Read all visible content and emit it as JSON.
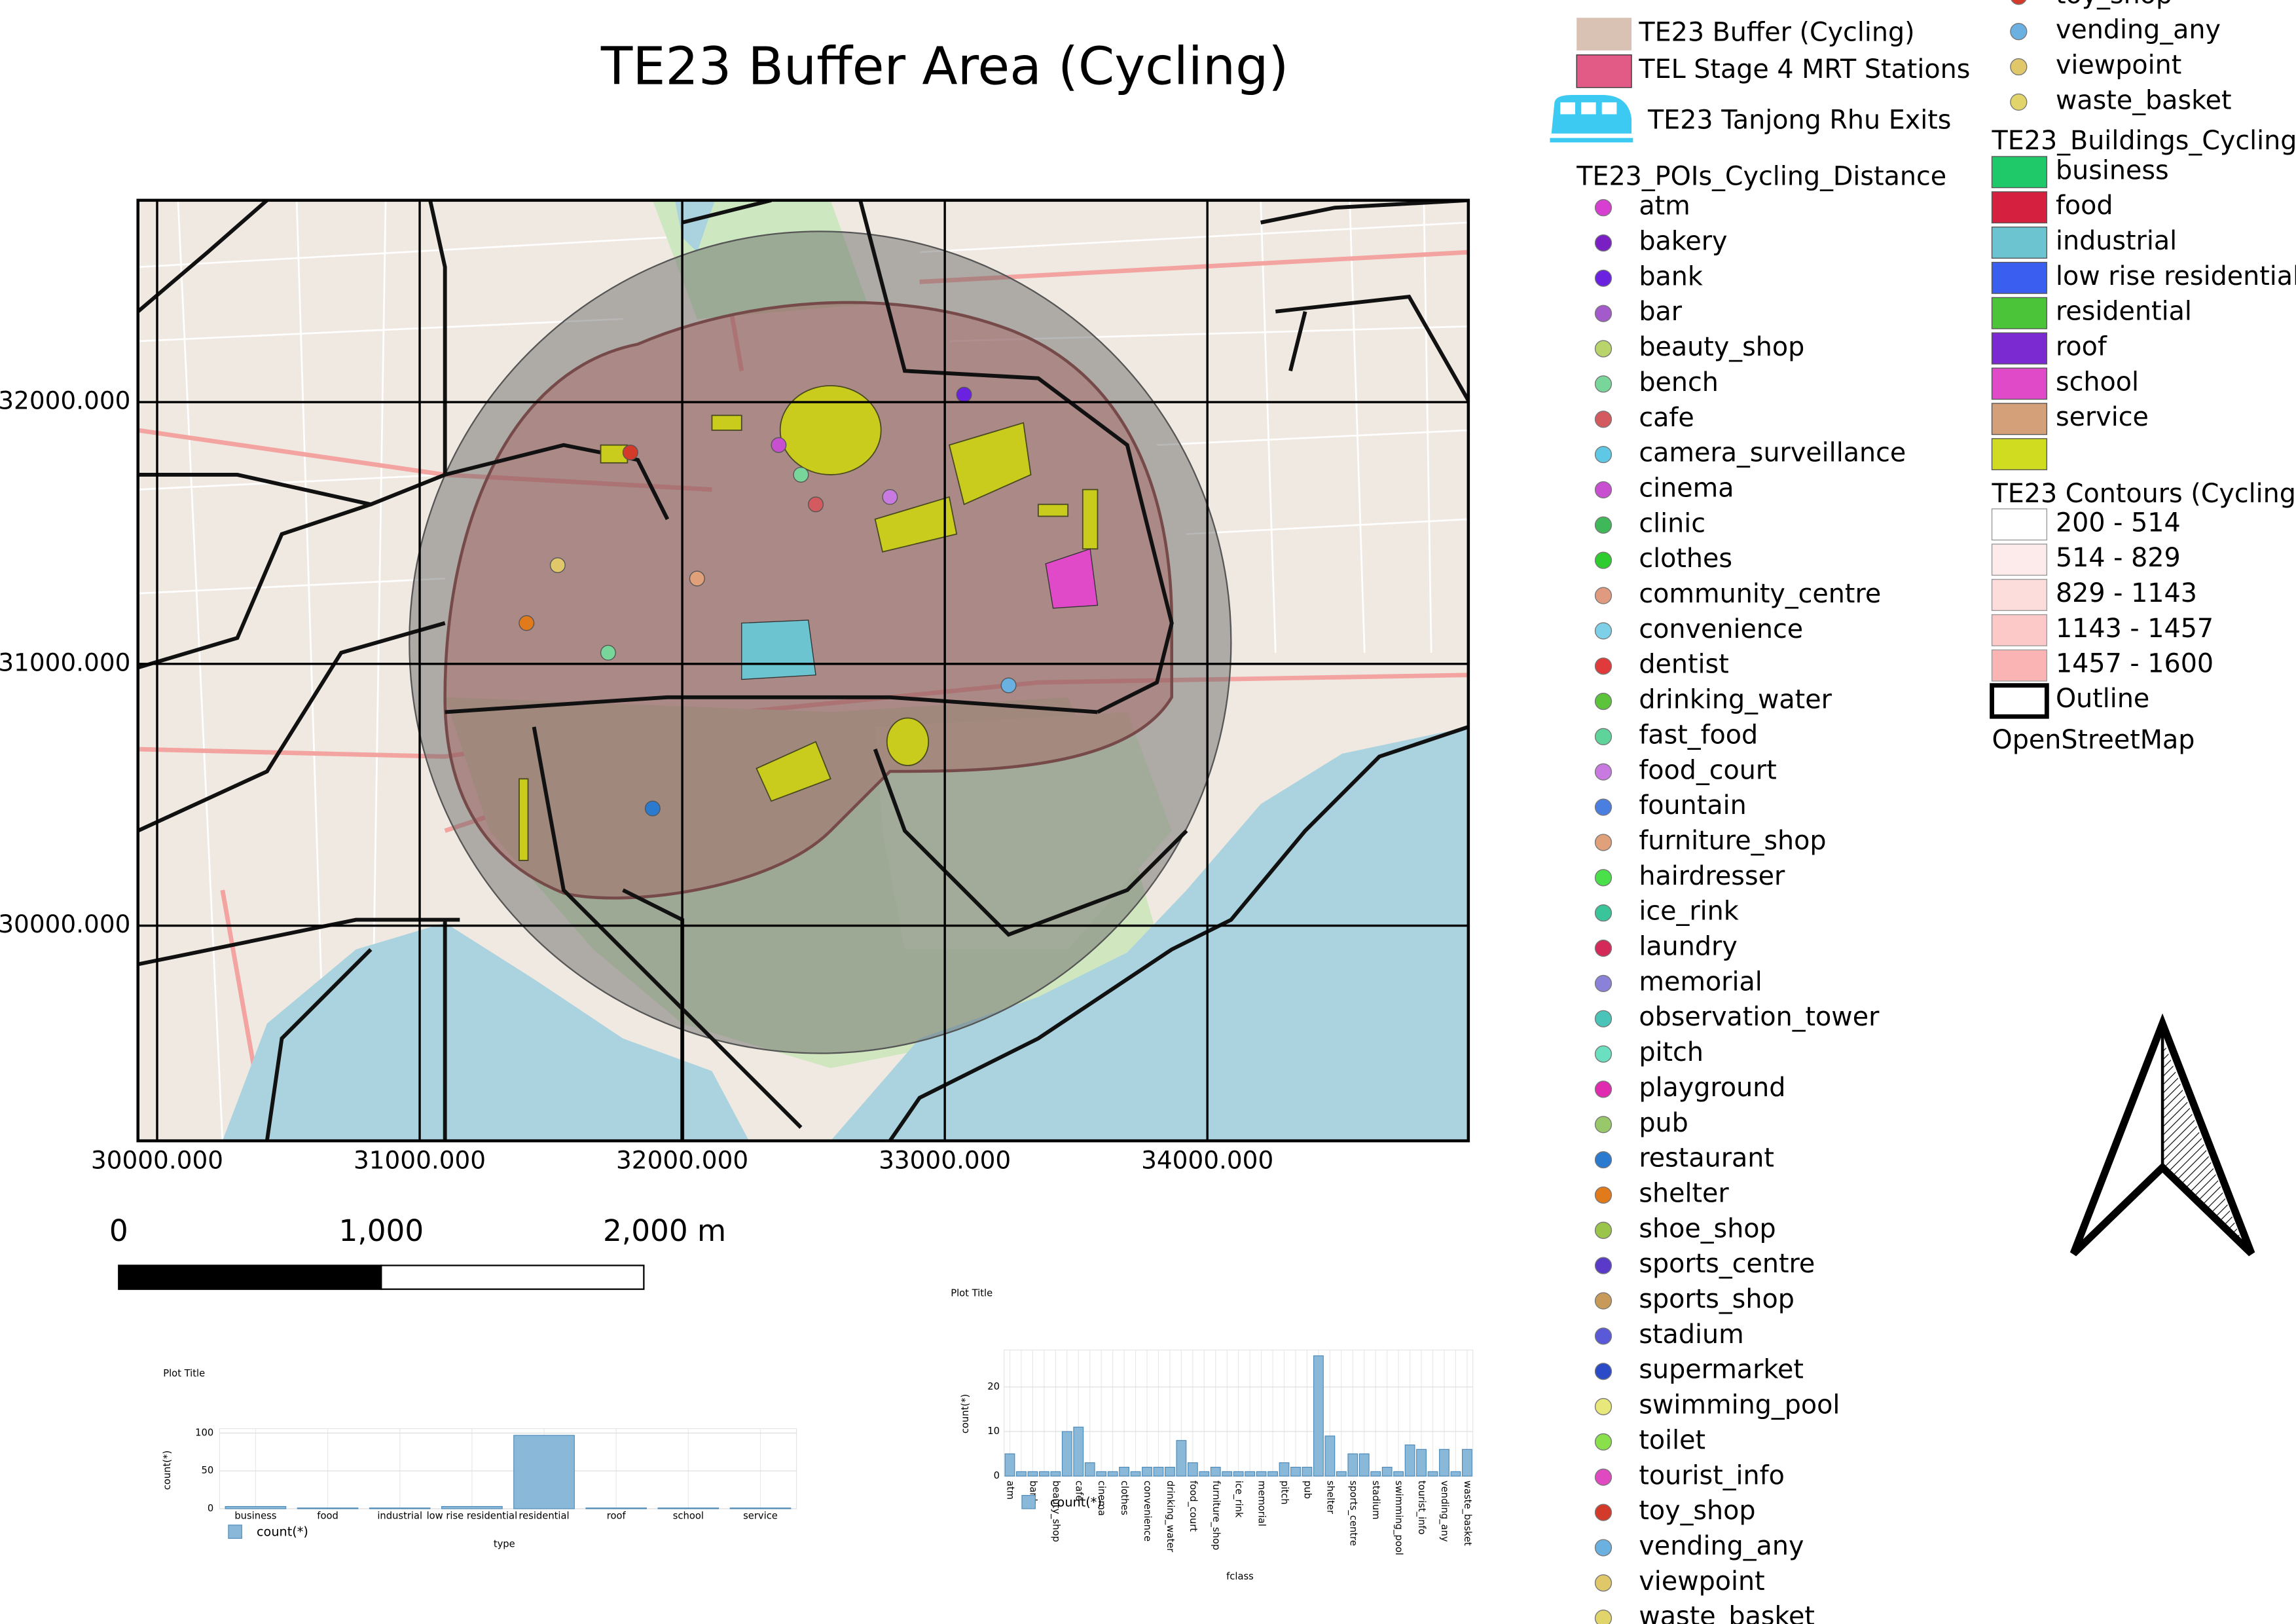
{
  "title": "TE23 Buffer Area (Cycling)",
  "map": {
    "xlim": [
      29927,
      34994
    ],
    "ylim": [
      29178,
      32771
    ],
    "xticks": [
      {
        "value": 30000,
        "label": "30000.000"
      },
      {
        "value": 31000,
        "label": "31000.000"
      },
      {
        "value": 32000,
        "label": "32000.000"
      },
      {
        "value": 33000,
        "label": "33000.000"
      },
      {
        "value": 34000,
        "label": "34000.000"
      }
    ],
    "yticks": [
      {
        "value": 30000,
        "label": "30000.000"
      },
      {
        "value": 31000,
        "label": "31000.000"
      },
      {
        "value": 32000,
        "label": "32000.000"
      }
    ]
  },
  "scale_bar": {
    "ticks": [
      0,
      {
        "value": 1000,
        "label": "1,000"
      },
      {
        "value": 2000,
        "label": "2,000 m"
      }
    ]
  },
  "legend": {
    "buffer": {
      "label": "TE23 Buffer (Cycling)",
      "color": "#d9c1b4"
    },
    "stations": {
      "label": "TEL Stage 4 MRT Stations",
      "color": "#e25a86"
    },
    "exits": {
      "label": "TE23 Tanjong Rhu Exits",
      "color": "#3ccaf2"
    },
    "pois": {
      "title": "TE23_POIs_Cycling_Distance",
      "items": [
        {
          "label": "atm",
          "color": "#d63fd0"
        },
        {
          "label": "bakery",
          "color": "#7a1fc4"
        },
        {
          "label": "bank",
          "color": "#6a21e0"
        },
        {
          "label": "bar",
          "color": "#a35acb"
        },
        {
          "label": "beauty_shop",
          "color": "#b8d46a"
        },
        {
          "label": "bench",
          "color": "#79d69a"
        },
        {
          "label": "cafe",
          "color": "#d35a5e"
        },
        {
          "label": "camera_surveillance",
          "color": "#5ec8e5"
        },
        {
          "label": "cinema",
          "color": "#c74fd0"
        },
        {
          "label": "clinic",
          "color": "#3fb85a"
        },
        {
          "label": "clothes",
          "color": "#2ecc2e"
        },
        {
          "label": "community_centre",
          "color": "#e09a80"
        },
        {
          "label": "convenience",
          "color": "#7dd0e8"
        },
        {
          "label": "dentist",
          "color": "#e03a3a"
        },
        {
          "label": "drinking_water",
          "color": "#5cc43a"
        },
        {
          "label": "fast_food",
          "color": "#5fd49a"
        },
        {
          "label": "food_court",
          "color": "#c87ae0"
        },
        {
          "label": "fountain",
          "color": "#4a7ee0"
        },
        {
          "label": "furniture_shop",
          "color": "#e0a07a"
        },
        {
          "label": "hairdresser",
          "color": "#4ae04a"
        },
        {
          "label": "ice_rink",
          "color": "#3ac49a"
        },
        {
          "label": "laundry",
          "color": "#d42a5a"
        },
        {
          "label": "memorial",
          "color": "#8a82d8"
        },
        {
          "label": "observation_tower",
          "color": "#4ac4b8"
        },
        {
          "label": "pitch",
          "color": "#6ae0c0"
        },
        {
          "label": "playground",
          "color": "#e02ab0"
        },
        {
          "label": "pub",
          "color": "#98c86a"
        },
        {
          "label": "restaurant",
          "color": "#2a7ad0"
        },
        {
          "label": "shelter",
          "color": "#e07a1a"
        },
        {
          "label": "shoe_shop",
          "color": "#9ac44a"
        },
        {
          "label": "sports_centre",
          "color": "#5a3ac8"
        },
        {
          "label": "sports_shop",
          "color": "#c89a5a"
        },
        {
          "label": "stadium",
          "color": "#5a5ad8"
        },
        {
          "label": "supermarket",
          "color": "#2a4ac8"
        },
        {
          "label": "swimming_pool",
          "color": "#e8e87a"
        },
        {
          "label": "toilet",
          "color": "#8ae04a"
        },
        {
          "label": "tourist_info",
          "color": "#e04ac0"
        },
        {
          "label": "toy_shop",
          "color": "#d43a2a"
        },
        {
          "label": "vending_any",
          "color": "#6ab0e0"
        },
        {
          "label": "viewpoint",
          "color": "#e0c86a"
        },
        {
          "label": "waste_basket",
          "color": "#e0d46a"
        }
      ]
    },
    "poi_overflow": [
      {
        "label": "toy_shop",
        "color": "#d43a2a"
      },
      {
        "label": "vending_any",
        "color": "#6ab0e0"
      },
      {
        "label": "viewpoint",
        "color": "#e0c86a"
      },
      {
        "label": "waste_basket",
        "color": "#e0d46a"
      }
    ],
    "buildings": {
      "title": "TE23_Buildings_Cycling",
      "items": [
        {
          "label": "business",
          "color": "#1fc96a"
        },
        {
          "label": "food",
          "color": "#d6203f"
        },
        {
          "label": "industrial",
          "color": "#6cc4d0"
        },
        {
          "label": "low rise residential",
          "color": "#3a5ef0"
        },
        {
          "label": "residential",
          "color": "#4cc43a"
        },
        {
          "label": "roof",
          "color": "#7a2ad0"
        },
        {
          "label": "school",
          "color": "#e04ac8"
        },
        {
          "label": "service",
          "color": "#d4a07a"
        },
        {
          "color": "#cfdc1f"
        }
      ]
    },
    "contours": {
      "title": "TE23 Contours (Cycling)",
      "items": [
        {
          "label": "200 - 514",
          "color": "#ffffff"
        },
        {
          "label": "514 - 829",
          "color": "#fdeaea"
        },
        {
          "label": "829 - 1143",
          "color": "#fddcdc"
        },
        {
          "label": "1143 - 1457",
          "color": "#fcc8c8"
        },
        {
          "label": "1457 - 1600",
          "color": "#fbb4b4"
        }
      ]
    },
    "outline": {
      "label": "Outline"
    },
    "basemap": {
      "label": "OpenStreetMap"
    }
  },
  "plots": [
    {
      "type": "bar",
      "title": "Plot Title",
      "categories": [
        "business",
        "food",
        "industrial",
        "low rise residential",
        "residential",
        "roof",
        "school",
        "service"
      ],
      "values": [
        3,
        1,
        1,
        3,
        97,
        1,
        1,
        1
      ],
      "ylim": [
        0,
        100
      ],
      "yticks": [
        0,
        50,
        100
      ],
      "y_label": "count(*)",
      "x_label": "type",
      "legend": "count(*)",
      "color": "#8ab8d8"
    },
    {
      "type": "bar",
      "title": "Plot Title",
      "categories": [
        "atm",
        null,
        "bank",
        null,
        "beauty_shop",
        null,
        "cafe",
        null,
        "cinema",
        null,
        "clothes",
        null,
        "convenience",
        null,
        "drinking_water",
        null,
        "food_court",
        null,
        "furniture_shop",
        null,
        "ice_rink",
        null,
        "memorial",
        null,
        "pitch",
        null,
        "pub",
        null,
        "shelter",
        null,
        "sports_centre",
        null,
        "stadium",
        null,
        "swimming_pool",
        null,
        "tourist_info",
        null,
        "vending_any",
        null,
        "waste_basket"
      ],
      "values": [
        5,
        1,
        1,
        1,
        1,
        10,
        11,
        3,
        1,
        1,
        2,
        1,
        2,
        2,
        2,
        8,
        3,
        1,
        2,
        1,
        1,
        1,
        1,
        1,
        3,
        2,
        2,
        27,
        9,
        1,
        5,
        5,
        1,
        2,
        1,
        7,
        6,
        1,
        6,
        1,
        6
      ],
      "ylim": [
        0,
        27.3
      ],
      "yticks": [
        0,
        10,
        20
      ],
      "y_label": "count(*)",
      "x_label": "fclass",
      "legend": "count(*)",
      "color": "#8ab8d8"
    }
  ]
}
